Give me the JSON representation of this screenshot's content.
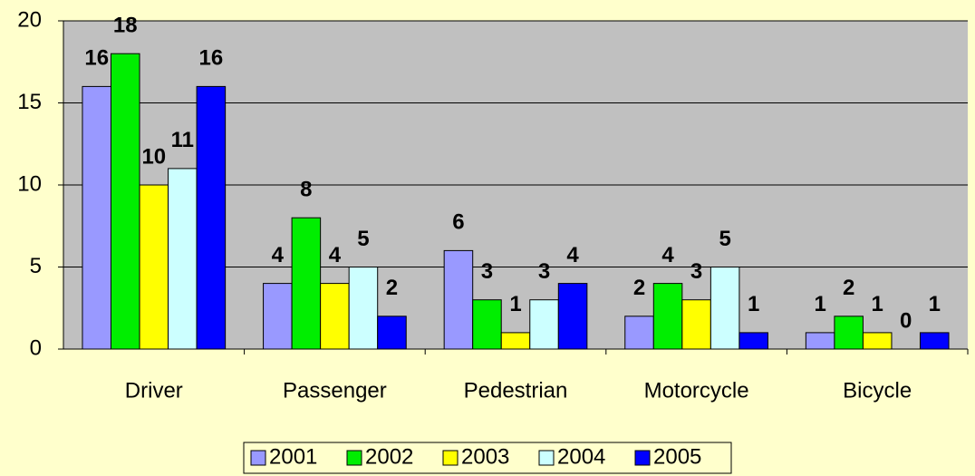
{
  "chart_data": {
    "type": "bar",
    "categories": [
      "Driver",
      "Passenger",
      "Pedestrian",
      "Motorcycle",
      "Bicycle"
    ],
    "series": [
      {
        "name": "2001",
        "color": "#9999ff",
        "values": [
          16,
          4,
          6,
          2,
          1
        ]
      },
      {
        "name": "2002",
        "color": "#00ee00",
        "values": [
          18,
          8,
          3,
          4,
          2
        ]
      },
      {
        "name": "2003",
        "color": "#ffff00",
        "values": [
          10,
          4,
          1,
          3,
          1
        ]
      },
      {
        "name": "2004",
        "color": "#ccffff",
        "values": [
          11,
          5,
          3,
          5,
          0
        ]
      },
      {
        "name": "2005",
        "color": "#0000ff",
        "values": [
          16,
          2,
          4,
          1,
          1
        ]
      }
    ],
    "ylim": [
      0,
      20
    ],
    "yticks": [
      0,
      5,
      10,
      15,
      20
    ],
    "grid": true,
    "legend": "bottom"
  }
}
